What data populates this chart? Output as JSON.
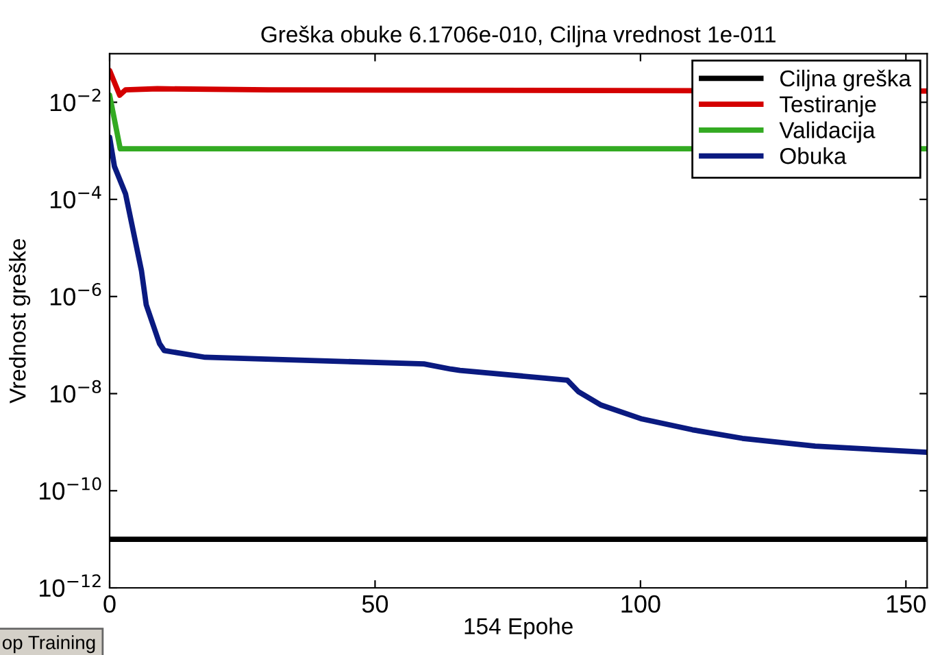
{
  "chart_data": {
    "type": "line",
    "title": "Greška obuke 6.1706e-010, Ciljna vrednost 1e-011",
    "xlabel": "154 Epohe",
    "ylabel": "Vrednost greške",
    "log": "y",
    "xlim": [
      0,
      154
    ],
    "ylim": [
      1e-12,
      0.1
    ],
    "xticks": [
      0,
      50,
      100,
      150
    ],
    "yticks": [
      {
        "value": 1e-12,
        "label": "10$^{−12}$"
      },
      {
        "value": 1e-10,
        "label": "10$^{−10}$"
      },
      {
        "value": 1e-08,
        "label": "10$^{−8}$"
      },
      {
        "value": 1e-06,
        "label": "10$^{−6}$"
      },
      {
        "value": 0.0001,
        "label": "10$^{−4}$"
      },
      {
        "value": 0.01,
        "label": "10$^{−2}$"
      }
    ],
    "grid": false,
    "legend": "top right",
    "line_style": "solid",
    "marker": "none",
    "series": [
      {
        "name": "Ciljna greška",
        "color": "#000000",
        "x": [
          0,
          154
        ],
        "values": [
          1e-11,
          1e-11
        ]
      },
      {
        "name": "Testiranje",
        "color": "#d40000",
        "x": [
          0,
          1.9,
          3,
          9,
          30,
          154
        ],
        "values": [
          0.045,
          0.014,
          0.018,
          0.019,
          0.018,
          0.017
        ]
      },
      {
        "name": "Validacija",
        "color": "#33aa22",
        "x": [
          0,
          2,
          154
        ],
        "values": [
          0.014,
          0.0011,
          0.0011
        ]
      },
      {
        "name": "Obuka",
        "color": "#0a1a80",
        "x": [
          0,
          0.9,
          3,
          6,
          6.9,
          9.4,
          10.3,
          18,
          59.2,
          64.3,
          66,
          86.2,
          88.3,
          92.6,
          100.3,
          109.8,
          119.2,
          132.9,
          154
        ],
        "values": [
          0.0019,
          0.00048,
          0.00013,
          3.4e-06,
          6.7e-07,
          1.07e-07,
          7.7e-08,
          5.6e-08,
          4.1e-08,
          3.2e-08,
          3e-08,
          1.9e-08,
          1.1e-08,
          5.8e-09,
          3e-09,
          1.8e-09,
          1.2e-09,
          8.3e-10,
          6.2e-10
        ]
      }
    ],
    "annotations": [
      "op Training"
    ]
  }
}
